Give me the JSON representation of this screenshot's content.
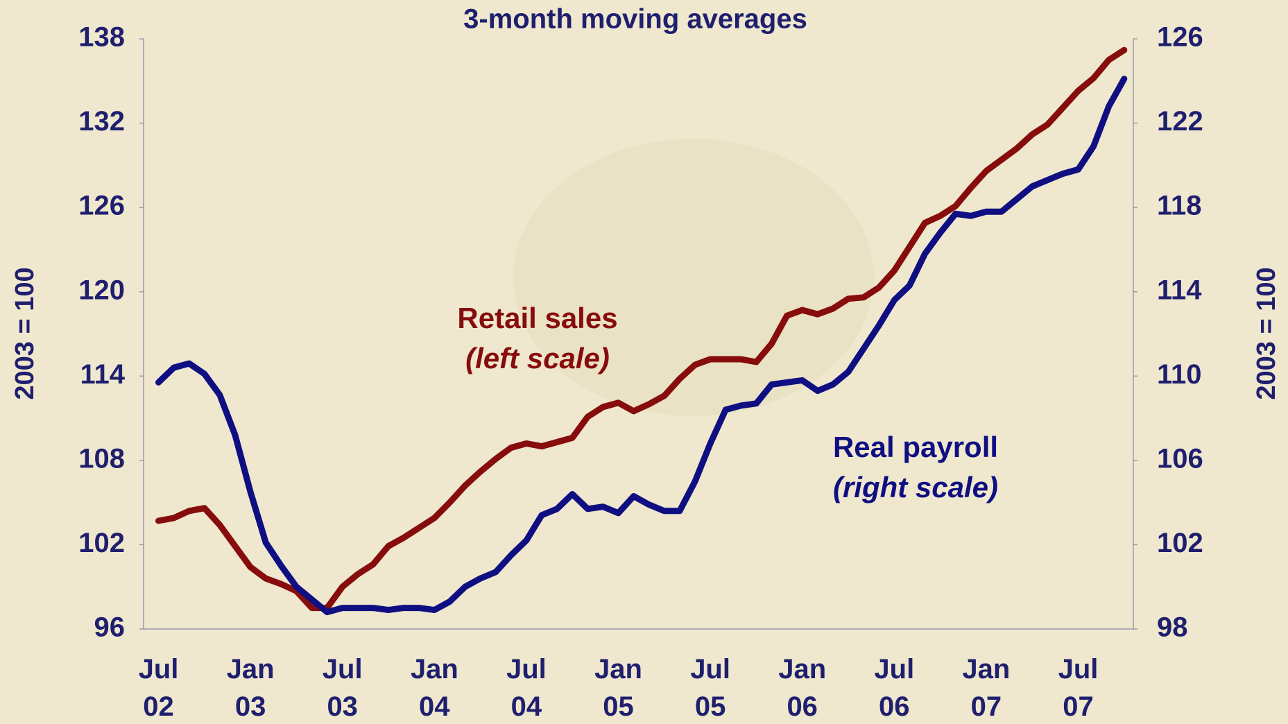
{
  "chart_data": {
    "type": "line",
    "title": "3-month moving averages",
    "y_label": "2003 = 100",
    "y2_label": "2003 = 100",
    "categories": [
      "Jul 02",
      null,
      null,
      null,
      null,
      null,
      "Jan 03",
      null,
      null,
      null,
      null,
      null,
      "Jul 03",
      null,
      null,
      null,
      null,
      null,
      "Jan 04",
      null,
      null,
      null,
      null,
      null,
      "Jul 04",
      null,
      null,
      null,
      null,
      null,
      "Jan 05",
      null,
      null,
      null,
      null,
      null,
      "Jul 05",
      null,
      null,
      null,
      null,
      null,
      "Jan 06",
      null,
      null,
      null,
      null,
      null,
      "Jul 06",
      null,
      null,
      null,
      null,
      null,
      "Jan 07",
      null,
      null,
      null,
      null,
      null,
      "Jul 07",
      null,
      null,
      null
    ],
    "series": [
      {
        "name": "Retail sales",
        "color": "#870c0c",
        "axis": "y",
        "values": [
          103.7,
          103.9,
          104.4,
          104.6,
          103.4,
          101.9,
          100.4,
          99.6,
          99.2,
          98.7,
          97.5,
          97.5,
          99.0,
          99.9,
          100.6,
          101.9,
          102.5,
          103.2,
          103.9,
          105.0,
          106.2,
          107.2,
          108.1,
          108.9,
          109.2,
          109.0,
          109.3,
          109.6,
          111.1,
          111.8,
          112.1,
          111.5,
          112.0,
          112.6,
          113.8,
          114.8,
          115.2,
          115.2,
          115.2,
          115.0,
          116.3,
          118.3,
          118.7,
          118.4,
          118.8,
          119.5,
          119.6,
          120.3,
          121.5,
          123.2,
          124.9,
          125.4,
          126.1,
          127.4,
          128.6,
          129.4,
          130.2,
          131.2,
          131.9,
          133.1,
          134.3,
          135.2,
          136.5,
          137.2
        ]
      },
      {
        "name": "Real payroll",
        "color": "#0f0f82",
        "axis": "y2",
        "values": [
          109.7,
          110.4,
          110.6,
          110.1,
          109.1,
          107.2,
          104.5,
          102.1,
          101.0,
          100.0,
          99.4,
          98.8,
          99.0,
          99.0,
          99.0,
          98.9,
          99.0,
          99.0,
          98.9,
          99.3,
          100.0,
          100.4,
          100.7,
          101.5,
          102.2,
          103.4,
          103.7,
          104.4,
          103.7,
          103.8,
          103.5,
          104.3,
          103.9,
          103.6,
          103.6,
          105.0,
          106.8,
          108.4,
          108.6,
          108.7,
          109.6,
          109.7,
          109.8,
          109.3,
          109.6,
          110.2,
          111.3,
          112.4,
          113.6,
          114.3,
          115.8,
          116.8,
          117.7,
          117.6,
          117.8,
          117.8,
          118.4,
          119.0,
          119.3,
          119.6,
          119.8,
          120.9,
          122.8,
          124.1
        ]
      }
    ],
    "annotations": [
      {
        "series": 0,
        "lines": [
          "Retail sales",
          "(left scale)"
        ]
      },
      {
        "series": 1,
        "lines": [
          "Real payroll",
          "(right scale)"
        ]
      }
    ],
    "ylim": [
      96,
      138
    ],
    "yticks": [
      96,
      102,
      108,
      114,
      120,
      126,
      132,
      138
    ],
    "y2lim": [
      98,
      126
    ],
    "y2ticks": [
      98,
      102,
      106,
      110,
      114,
      118,
      122,
      126
    ],
    "grid": false,
    "text_color": "#1f1f6e",
    "background": "#efe8cf"
  }
}
